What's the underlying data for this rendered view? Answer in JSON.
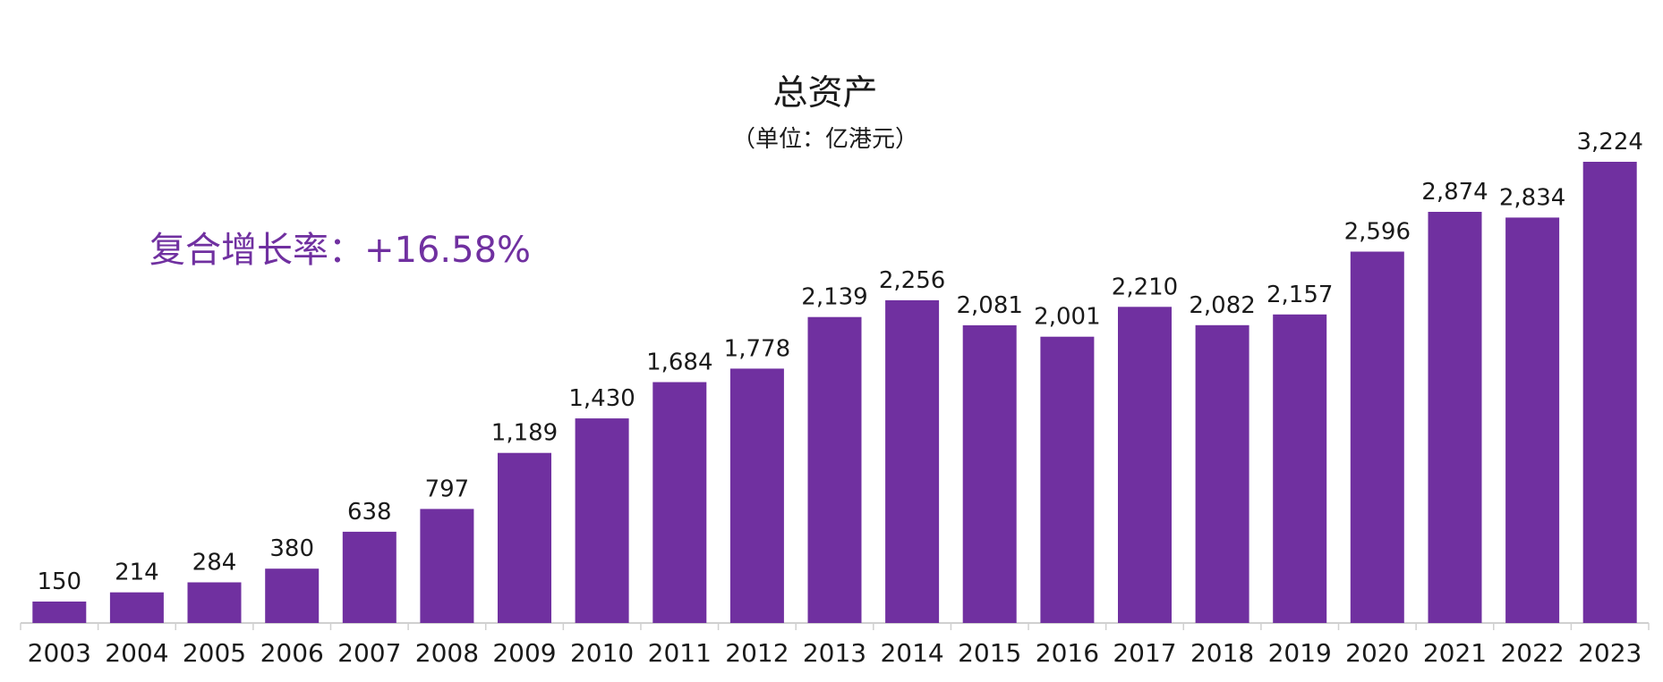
{
  "colors": {
    "bar": "#7030a0",
    "annotation": "#7030a0",
    "text": "#1a1a1a",
    "axis": "#d0d0d0"
  },
  "chart_data": {
    "type": "bar",
    "title": "总资产",
    "subtitle": "（单位：亿港元）",
    "annotation": "复合增长率：+16.58%",
    "categories": [
      "2003",
      "2004",
      "2005",
      "2006",
      "2007",
      "2008",
      "2009",
      "2010",
      "2011",
      "2012",
      "2013",
      "2014",
      "2015",
      "2016",
      "2017",
      "2018",
      "2019",
      "2020",
      "2021",
      "2022",
      "2023"
    ],
    "values": [
      150,
      214,
      284,
      380,
      638,
      797,
      1189,
      1430,
      1684,
      1778,
      2139,
      2256,
      2081,
      2001,
      2210,
      2082,
      2157,
      2596,
      2874,
      2834,
      3224
    ],
    "value_labels": [
      "150",
      "214",
      "284",
      "380",
      "638",
      "797",
      "1,189",
      "1,430",
      "1,684",
      "1,778",
      "2,139",
      "2,256",
      "2,081",
      "2,001",
      "2,210",
      "2,082",
      "2,157",
      "2,596",
      "2,874",
      "2,834",
      "3,224"
    ],
    "ylim": [
      0,
      3224
    ],
    "xlabel": "",
    "ylabel": "",
    "grid": false,
    "legend": "none"
  }
}
